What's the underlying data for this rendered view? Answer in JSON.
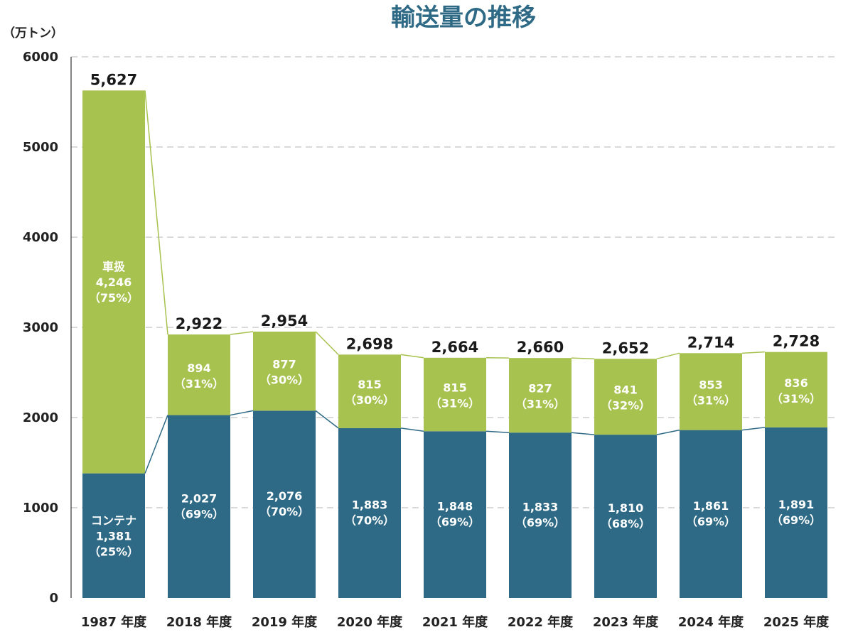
{
  "chart_data": {
    "type": "bar",
    "stacked": true,
    "title": "輸送量の推移",
    "unit_label": "（万トン）",
    "ylim": [
      0,
      6000
    ],
    "yticks": [
      "0",
      "1000",
      "2000",
      "3000",
      "4000",
      "5000",
      "6000"
    ],
    "grid": true,
    "categories": [
      "1987 年度",
      "2018 年度",
      "2019 年度",
      "2020 年度",
      "2021 年度",
      "2022 年度",
      "2023 年度",
      "2024 年度",
      "2025 年度"
    ],
    "series": [
      {
        "key": "container",
        "color": "#2e6a86",
        "values": [
          1381,
          2027,
          2076,
          1883,
          1848,
          1833,
          1810,
          1861,
          1891
        ],
        "labels": [
          "1,381",
          "2,027",
          "2,076",
          "1,883",
          "1,848",
          "1,833",
          "1,810",
          "1,861",
          "1,891"
        ],
        "shares": [
          "（25%）",
          "（69%）",
          "（70%）",
          "（70%）",
          "（69%）",
          "（69%）",
          "（68%）",
          "（69%）",
          "（69%）"
        ]
      },
      {
        "key": "sharatsu",
        "color": "#a7c24f",
        "values": [
          4246,
          894,
          877,
          815,
          815,
          827,
          841,
          853,
          836
        ],
        "labels": [
          "4,246",
          "894",
          "877",
          "815",
          "815",
          "827",
          "841",
          "853",
          "836"
        ],
        "shares": [
          "（75%）",
          "（31%）",
          "（30%）",
          "（30%）",
          "（31%）",
          "（31%）",
          "（32%）",
          "（31%）",
          "（31%）"
        ]
      }
    ],
    "in_bar_series_names": {
      "container": "コンテナ",
      "sharatsu": "車扱"
    },
    "totals": [
      5627,
      2922,
      2954,
      2698,
      2664,
      2660,
      2652,
      2714,
      2728
    ],
    "total_labels": [
      "5,627",
      "2,922",
      "2,954",
      "2,698",
      "2,664",
      "2,660",
      "2,652",
      "2,714",
      "2,728"
    ]
  }
}
